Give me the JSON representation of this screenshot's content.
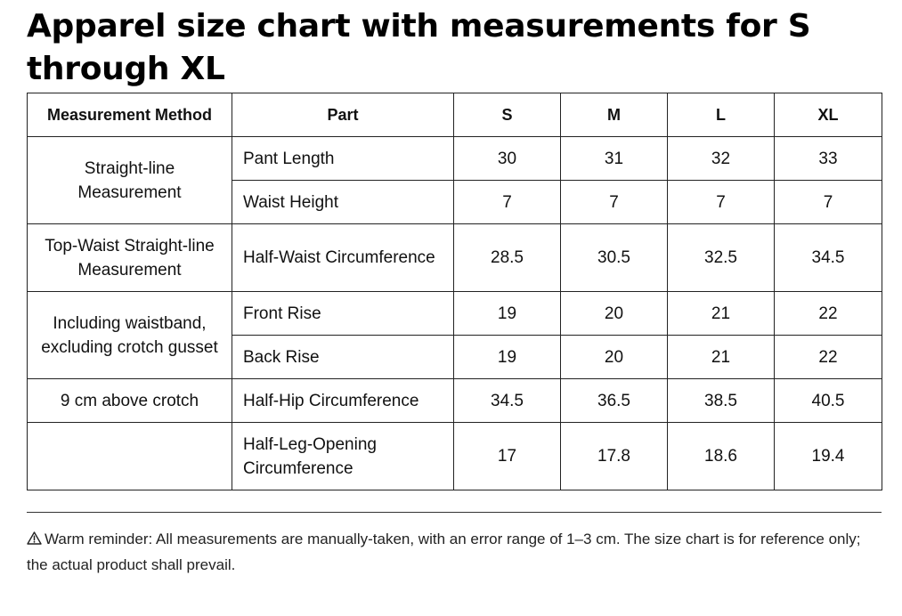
{
  "title": "Apparel size chart with measurements for S through XL",
  "table": {
    "headers": [
      "Measurement Method",
      "Part",
      "S",
      "M",
      "L",
      "XL"
    ],
    "groups": [
      {
        "method": "Straight-line Measurement",
        "rows": [
          {
            "part": "Pant Length",
            "values": [
              "30",
              "31",
              "32",
              "33"
            ]
          },
          {
            "part": "Waist Height",
            "values": [
              "7",
              "7",
              "7",
              "7"
            ]
          }
        ]
      },
      {
        "method": "Top-Waist Straight-line Measurement",
        "rows": [
          {
            "part": "Half-Waist Circumference",
            "values": [
              "28.5",
              "30.5",
              "32.5",
              "34.5"
            ]
          }
        ]
      },
      {
        "method": "Including waistband, excluding crotch gusset",
        "rows": [
          {
            "part": "Front Rise",
            "values": [
              "19",
              "20",
              "21",
              "22"
            ]
          },
          {
            "part": "Back Rise",
            "values": [
              "19",
              "20",
              "21",
              "22"
            ]
          }
        ]
      },
      {
        "method": "9 cm above crotch",
        "rows": [
          {
            "part": "Half-Hip Circumference",
            "values": [
              "34.5",
              "36.5",
              "38.5",
              "40.5"
            ]
          }
        ]
      },
      {
        "method": "",
        "rows": [
          {
            "part": "Half-Leg-Opening Circumference",
            "values": [
              "17",
              "17.8",
              "18.6",
              "19.4"
            ]
          }
        ]
      }
    ]
  },
  "reminder": {
    "icon": "warning-triangle-icon",
    "text": "Warm reminder: All measurements are manually-taken, with an error range of 1–3 cm. The size chart is for reference only; the actual product shall prevail."
  }
}
